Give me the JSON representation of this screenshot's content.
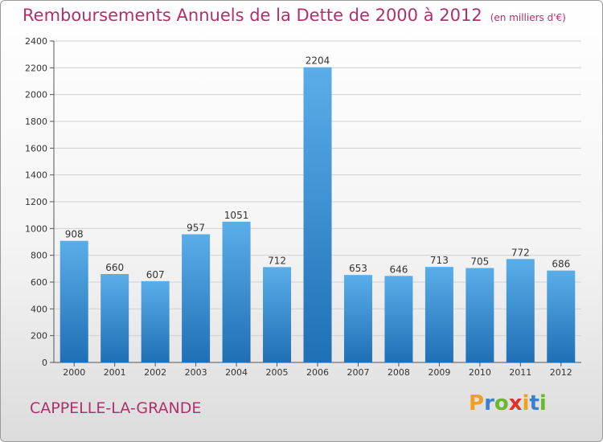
{
  "chart_data": {
    "type": "bar",
    "title": "Remboursements Annuels de la Dette de 2000 à 2012",
    "unit_note": "(en milliers d'€)",
    "categories": [
      "2000",
      "2001",
      "2002",
      "2003",
      "2004",
      "2005",
      "2006",
      "2007",
      "2008",
      "2009",
      "2010",
      "2011",
      "2012"
    ],
    "values": [
      908,
      660,
      607,
      957,
      1051,
      712,
      2204,
      653,
      646,
      713,
      705,
      772,
      686
    ],
    "ylim": [
      0,
      2400
    ],
    "yticks": [
      0,
      200,
      400,
      600,
      800,
      1000,
      1200,
      1400,
      1600,
      1800,
      2000,
      2200,
      2400
    ],
    "grid": true,
    "bar_color": "#3a8fd4"
  },
  "footer": {
    "city": "CAPPELLE-LA-GRANDE"
  },
  "logo": {
    "letters": [
      "P",
      "r",
      "o",
      "x",
      "i",
      "t",
      "i"
    ],
    "colors": [
      "#f0a020",
      "#3a7fd0",
      "#6ab82e",
      "#e03030",
      "#f0a020",
      "#3a7fd0",
      "#6ab82e"
    ]
  }
}
